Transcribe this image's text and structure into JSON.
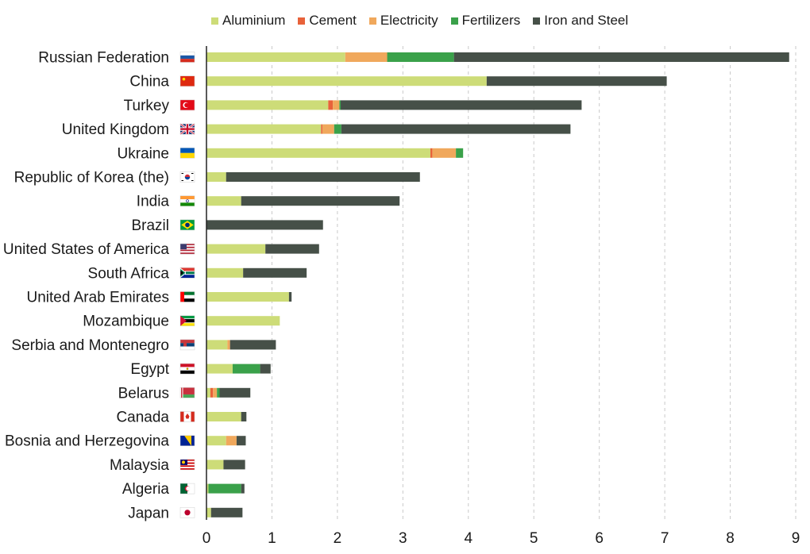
{
  "chart_data": {
    "type": "bar",
    "orientation": "horizontal",
    "stacked": true,
    "title": "",
    "xlabel": "",
    "ylabel": "",
    "xlim": [
      0,
      9
    ],
    "x_ticks": [
      "0",
      "1",
      "2",
      "3",
      "4",
      "5",
      "6",
      "7",
      "8",
      "9"
    ],
    "grid": "vertical dashed",
    "legend_position": "top",
    "categories": [
      "Russian Federation",
      "China",
      "Turkey",
      "United Kingdom",
      "Ukraine",
      "Republic of Korea (the)",
      "India",
      "Brazil",
      "United States of America",
      "South Africa",
      "United Arab Emirates",
      "Mozambique",
      "Serbia and Montenegro",
      "Egypt",
      "Belarus",
      "Canada",
      "Bosnia and Herzegovina",
      "Malaysia",
      "Algeria",
      "Japan"
    ],
    "series": [
      {
        "name": "Aluminium",
        "color": "#cddc78",
        "values": [
          2.12,
          4.28,
          1.86,
          1.75,
          3.42,
          0.3,
          0.53,
          0.0,
          0.9,
          0.56,
          1.26,
          1.12,
          0.32,
          0.4,
          0.06,
          0.53,
          0.3,
          0.26,
          0.03,
          0.07
        ]
      },
      {
        "name": "Cement",
        "color": "#e8623a",
        "values": [
          0.0,
          0.0,
          0.07,
          0.02,
          0.03,
          0.0,
          0.0,
          0.0,
          0.0,
          0.0,
          0.0,
          0.0,
          0.0,
          0.0,
          0.04,
          0.0,
          0.0,
          0.0,
          0.0,
          0.0
        ]
      },
      {
        "name": "Electricity",
        "color": "#f0a85c",
        "values": [
          0.64,
          0.0,
          0.1,
          0.18,
          0.36,
          0.0,
          0.0,
          0.0,
          0.0,
          0.0,
          0.0,
          0.0,
          0.04,
          0.0,
          0.06,
          0.0,
          0.16,
          0.0,
          0.0,
          0.0
        ]
      },
      {
        "name": "Fertilizers",
        "color": "#3aa14a",
        "values": [
          1.02,
          0.0,
          0.02,
          0.11,
          0.11,
          0.0,
          0.0,
          0.0,
          0.0,
          0.0,
          0.0,
          0.0,
          0.0,
          0.42,
          0.04,
          0.0,
          0.0,
          0.0,
          0.5,
          0.0
        ]
      },
      {
        "name": "Iron and Steel",
        "color": "#465048",
        "values": [
          5.12,
          2.75,
          3.68,
          3.5,
          0.0,
          2.96,
          2.42,
          1.78,
          0.82,
          0.97,
          0.04,
          0.0,
          0.7,
          0.16,
          0.47,
          0.08,
          0.14,
          0.33,
          0.05,
          0.48
        ]
      }
    ]
  },
  "flags": [
    "russia-flag-icon",
    "china-flag-icon",
    "turkey-flag-icon",
    "uk-flag-icon",
    "ukraine-flag-icon",
    "korea-flag-icon",
    "india-flag-icon",
    "brazil-flag-icon",
    "usa-flag-icon",
    "south-africa-flag-icon",
    "uae-flag-icon",
    "mozambique-flag-icon",
    "serbia-flag-icon",
    "egypt-flag-icon",
    "belarus-flag-icon",
    "canada-flag-icon",
    "bosnia-flag-icon",
    "malaysia-flag-icon",
    "algeria-flag-icon",
    "japan-flag-icon"
  ]
}
